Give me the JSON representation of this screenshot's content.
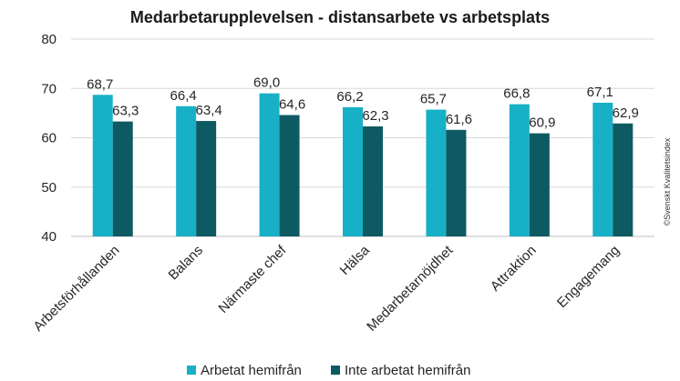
{
  "chart_data": {
    "type": "bar",
    "title": "Medarbetarupplevelsen - distansarbete vs arbetsplats",
    "categories": [
      "Arbetsförhållanden",
      "Balans",
      "Närmaste chef",
      "Hälsa",
      "Medarbetarnöjdhet",
      "Attraktion",
      "Engagemang"
    ],
    "series": [
      {
        "name": "Arbetat hemifrån",
        "values": [
          68.7,
          66.4,
          69.0,
          66.2,
          65.7,
          66.8,
          67.1
        ],
        "labels": [
          "68,7",
          "66,4",
          "69,0",
          "66,2",
          "65,7",
          "66,8",
          "67,1"
        ],
        "color": "#17b0c6"
      },
      {
        "name": "Inte arbetat hemifrån",
        "values": [
          63.3,
          63.4,
          64.6,
          62.3,
          61.6,
          60.9,
          62.9
        ],
        "labels": [
          "63,3",
          "63,4",
          "64,6",
          "62,3",
          "61,6",
          "60,9",
          "62,9"
        ],
        "color": "#0e5a63"
      }
    ],
    "ylim": [
      40,
      80
    ],
    "yticks": [
      "40",
      "50",
      "60",
      "70",
      "80"
    ],
    "ytick_values": [
      40,
      50,
      60,
      70,
      80
    ],
    "grid": true,
    "legend_position": "bottom",
    "copyright": "©Svenskt Kvalitetsindex"
  }
}
